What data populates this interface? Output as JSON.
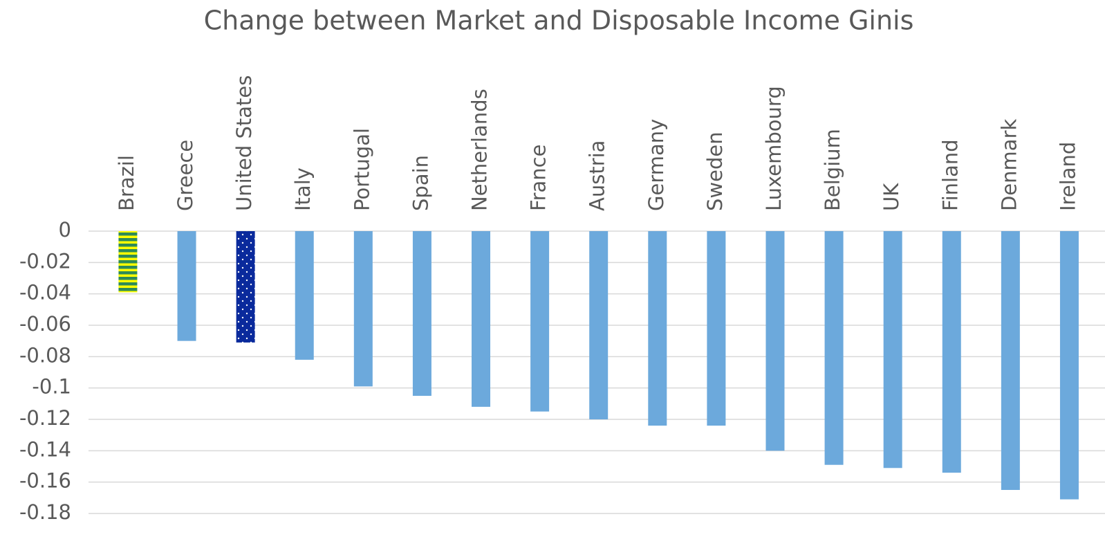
{
  "chart_data": {
    "type": "bar",
    "title": "Change between Market and Disposable Income Ginis",
    "categories": [
      "Brazil",
      "Greece",
      "United States",
      "Italy",
      "Portugal",
      "Spain",
      "Netherlands",
      "France",
      "Austria",
      "Germany",
      "Sweden",
      "Luxembourg",
      "Belgium",
      "UK",
      "Finland",
      "Denmark",
      "Ireland"
    ],
    "values": [
      -0.039,
      -0.07,
      -0.071,
      -0.082,
      -0.099,
      -0.105,
      -0.112,
      -0.115,
      -0.12,
      -0.124,
      -0.124,
      -0.14,
      -0.149,
      -0.151,
      -0.154,
      -0.165,
      -0.171
    ],
    "colors": [
      "url(#stripes)",
      "#6ca9dc",
      "url(#dots)",
      "#6ca9dc",
      "#6ca9dc",
      "#6ca9dc",
      "#6ca9dc",
      "#6ca9dc",
      "#6ca9dc",
      "#6ca9dc",
      "#6ca9dc",
      "#6ca9dc",
      "#6ca9dc",
      "#6ca9dc",
      "#6ca9dc",
      "#6ca9dc",
      "#6ca9dc"
    ],
    "ylim": [
      -0.18,
      0
    ],
    "yticks": [
      0,
      -0.02,
      -0.04,
      -0.06,
      -0.08,
      -0.1,
      -0.12,
      -0.14,
      -0.16,
      -0.18
    ],
    "grid": true
  }
}
